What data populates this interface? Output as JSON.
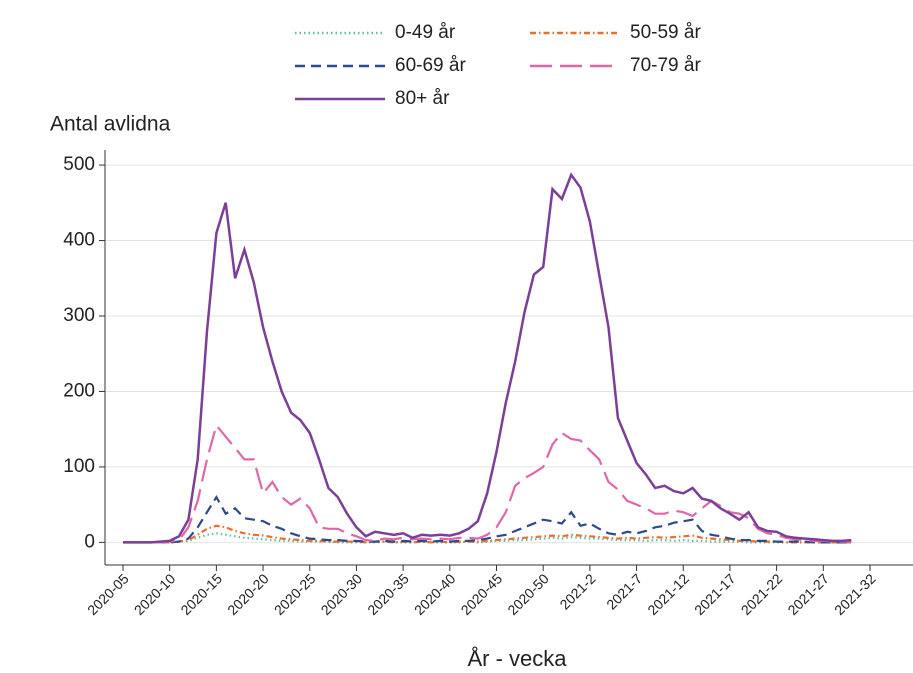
{
  "chart_data": {
    "type": "line",
    "y_label": "Antal avlidna",
    "x_label": "År - vecka",
    "categories": [
      "2020-05",
      null,
      null,
      null,
      null,
      "2020-10",
      null,
      null,
      null,
      null,
      "2020-15",
      null,
      null,
      null,
      null,
      "2020-20",
      null,
      null,
      null,
      null,
      "2020-25",
      null,
      null,
      null,
      null,
      "2020-30",
      null,
      null,
      null,
      null,
      "2020-35",
      null,
      null,
      null,
      null,
      "2020-40",
      null,
      null,
      null,
      null,
      "2020-45",
      null,
      null,
      null,
      null,
      "2020-50",
      null,
      null,
      null,
      null,
      "2021-2",
      null,
      null,
      null,
      null,
      "2021-7",
      null,
      null,
      null,
      null,
      "2021-12",
      null,
      null,
      null,
      null,
      "2021-17",
      null,
      null,
      null,
      null,
      "2021-22",
      null,
      null,
      null,
      null,
      "2021-27",
      null,
      null,
      null,
      null,
      "2021-32"
    ],
    "series": [
      {
        "name": "0-49 år",
        "color": "#5fbfa8",
        "dash": "dot",
        "values": [
          0,
          0,
          0,
          0,
          0,
          0,
          1,
          2,
          6,
          10,
          12,
          10,
          8,
          6,
          5,
          4,
          3,
          2,
          2,
          1,
          1,
          1,
          1,
          0,
          0,
          0,
          0,
          0,
          1,
          0,
          0,
          0,
          1,
          0,
          0,
          0,
          0,
          1,
          0,
          1,
          2,
          2,
          3,
          3,
          4,
          5,
          6,
          5,
          7,
          6,
          5,
          5,
          4,
          3,
          3,
          3,
          2,
          3,
          3,
          2,
          3,
          2,
          2,
          1,
          1,
          1,
          1,
          0,
          0,
          0,
          0,
          0,
          0,
          0,
          0,
          0,
          0,
          0,
          0,
          null,
          null
        ]
      },
      {
        "name": "50-59 år",
        "color": "#e8702a",
        "dash": "dashdot",
        "values": [
          0,
          0,
          0,
          0,
          0,
          0,
          1,
          3,
          10,
          18,
          22,
          20,
          15,
          12,
          10,
          9,
          7,
          5,
          4,
          3,
          2,
          2,
          1,
          1,
          1,
          1,
          0,
          1,
          1,
          0,
          1,
          0,
          1,
          0,
          1,
          0,
          1,
          1,
          1,
          2,
          3,
          4,
          5,
          6,
          7,
          8,
          9,
          8,
          10,
          9,
          8,
          7,
          6,
          5,
          6,
          5,
          6,
          7,
          6,
          7,
          8,
          9,
          6,
          5,
          4,
          3,
          2,
          2,
          1,
          1,
          1,
          0,
          0,
          0,
          0,
          0,
          0,
          0,
          0,
          null,
          null
        ]
      },
      {
        "name": "60-69 år",
        "color": "#2e4a8c",
        "dash": "dash",
        "values": [
          0,
          0,
          0,
          0,
          0,
          0,
          1,
          5,
          20,
          40,
          60,
          38,
          45,
          32,
          30,
          28,
          22,
          18,
          12,
          8,
          5,
          4,
          3,
          3,
          2,
          2,
          1,
          1,
          2,
          1,
          2,
          1,
          2,
          1,
          2,
          1,
          2,
          2,
          3,
          5,
          8,
          10,
          15,
          20,
          25,
          30,
          28,
          25,
          40,
          22,
          25,
          18,
          12,
          10,
          14,
          12,
          15,
          20,
          22,
          26,
          28,
          30,
          15,
          10,
          8,
          5,
          3,
          3,
          2,
          2,
          1,
          1,
          1,
          1,
          0,
          0,
          0,
          0,
          0,
          null,
          null
        ]
      },
      {
        "name": "70-79 år",
        "color": "#e066a8",
        "dash": "longdash",
        "values": [
          0,
          0,
          0,
          0,
          0,
          1,
          3,
          20,
          55,
          110,
          155,
          140,
          125,
          110,
          110,
          65,
          80,
          60,
          50,
          58,
          45,
          20,
          18,
          18,
          12,
          8,
          3,
          2,
          5,
          4,
          6,
          4,
          5,
          4,
          5,
          4,
          6,
          6,
          5,
          10,
          20,
          40,
          75,
          85,
          92,
          100,
          130,
          145,
          137,
          135,
          122,
          110,
          80,
          70,
          55,
          50,
          45,
          38,
          38,
          42,
          40,
          35,
          45,
          55,
          48,
          40,
          38,
          32,
          18,
          12,
          10,
          6,
          4,
          3,
          2,
          2,
          1,
          1,
          1,
          null,
          null
        ]
      },
      {
        "name": "80+ år",
        "color": "#7b3f98",
        "dash": "solid",
        "values": [
          0,
          0,
          0,
          0,
          1,
          2,
          8,
          30,
          110,
          280,
          410,
          450,
          350,
          388,
          345,
          285,
          240,
          200,
          172,
          162,
          145,
          110,
          72,
          60,
          38,
          20,
          8,
          14,
          12,
          10,
          12,
          6,
          10,
          9,
          10,
          9,
          12,
          18,
          28,
          65,
          120,
          185,
          240,
          305,
          355,
          365,
          468,
          455,
          487,
          470,
          425,
          355,
          285,
          165,
          135,
          105,
          90,
          72,
          75,
          68,
          65,
          72,
          58,
          55,
          45,
          38,
          30,
          40,
          20,
          15,
          14,
          8,
          6,
          5,
          4,
          3,
          2,
          2,
          3,
          null,
          null
        ]
      }
    ],
    "ylim": [
      -30,
      520
    ],
    "yticks": [
      0,
      100,
      200,
      300,
      400,
      500
    ],
    "grid": true,
    "legend": "top"
  }
}
